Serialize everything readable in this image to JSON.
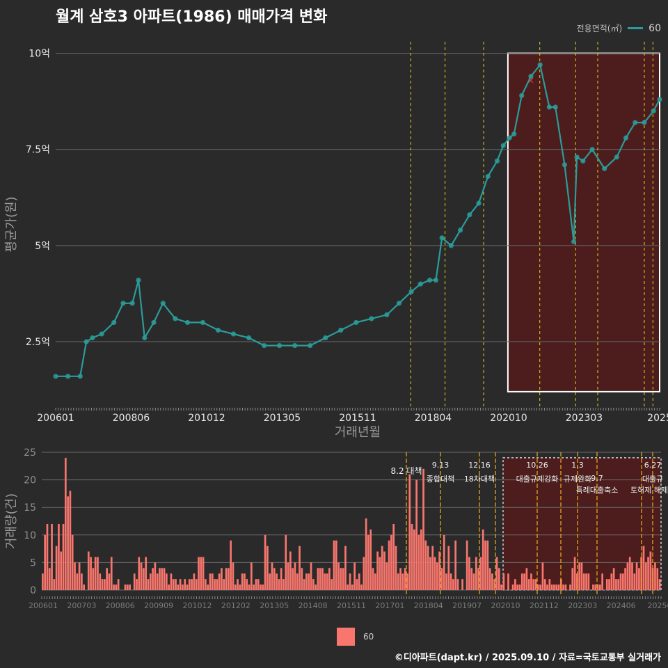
{
  "title": "월계 삼호3 아파트(1986) 매매가격 변화",
  "legend": {
    "title": "전용면적(㎡)",
    "entries": [
      "60"
    ]
  },
  "footer": "©디아파트(dapt.kr) / 2025.09.10 / 자료=국토교통부 실거래가",
  "colors": {
    "background": "#2a2a2b",
    "line": "#2a9d9a",
    "bar": "#f8766d",
    "vline": "#e6d21a",
    "vline2": "#e6a21a",
    "highlight": "#5a1a1a"
  },
  "chart_data": [
    {
      "type": "line",
      "title": "월계 삼호3 아파트(1986) 매매가격 변화",
      "xlabel": "거래년월",
      "ylabel": "평균가(원)",
      "x_tick_labels": [
        "200601",
        "200806",
        "201012",
        "201305",
        "201511",
        "201804",
        "202010",
        "202303",
        "2025"
      ],
      "y_tick_labels": [
        "2.5억",
        "5억",
        "7.5억",
        "10억"
      ],
      "y_tick_values": [
        2.5,
        5,
        7.5,
        10
      ],
      "ylim": [
        0.8,
        10.3
      ],
      "xlim": [
        2006.0,
        2025.7
      ],
      "series": [
        {
          "name": "60",
          "x": [
            2006.0,
            2006.4,
            2006.8,
            2007.0,
            2007.2,
            2007.5,
            2007.9,
            2008.2,
            2008.5,
            2008.7,
            2008.9,
            2009.2,
            2009.5,
            2009.9,
            2010.3,
            2010.8,
            2011.3,
            2011.8,
            2012.3,
            2012.8,
            2013.3,
            2013.8,
            2014.3,
            2014.8,
            2015.3,
            2015.8,
            2016.3,
            2016.8,
            2017.2,
            2017.6,
            2017.9,
            2018.2,
            2018.4,
            2018.6,
            2018.9,
            2019.2,
            2019.5,
            2019.8,
            2020.1,
            2020.4,
            2020.6,
            2020.8,
            2020.95,
            2021.2,
            2021.5,
            2021.8,
            2022.1,
            2022.3,
            2022.6,
            2022.9,
            2023.0,
            2023.2,
            2023.5,
            2023.9,
            2024.3,
            2024.6,
            2024.9,
            2025.2,
            2025.5,
            2025.7
          ],
          "y": [
            1.6,
            1.6,
            1.6,
            2.5,
            2.6,
            2.7,
            3.0,
            3.5,
            3.5,
            4.1,
            2.6,
            3.0,
            3.5,
            3.1,
            3.0,
            3.0,
            2.8,
            2.7,
            2.6,
            2.4,
            2.4,
            2.4,
            2.4,
            2.6,
            2.8,
            3.0,
            3.1,
            3.2,
            3.5,
            3.8,
            4.0,
            4.1,
            4.1,
            5.2,
            5.0,
            5.4,
            5.8,
            6.1,
            6.8,
            7.2,
            7.6,
            7.8,
            7.9,
            8.9,
            9.4,
            9.7,
            8.6,
            8.6,
            7.1,
            5.1,
            7.3,
            7.2,
            7.5,
            7.0,
            7.3,
            7.8,
            8.2,
            8.2,
            8.5,
            8.8
          ]
        }
      ],
      "annotation_marks": [
        {
          "label": "×",
          "x": 2021.5,
          "y": 9.3
        }
      ],
      "vlines": [
        2017.58,
        2018.7,
        2019.96,
        2021.79,
        2022.96,
        2023.68,
        2025.2,
        2025.48
      ],
      "highlight": {
        "x0": 2020.75,
        "x1": 2025.7,
        "y0": 1.2,
        "y1": 10.0
      }
    },
    {
      "type": "bar",
      "xlabel": "",
      "ylabel": "거래량(건)",
      "x_tick_labels": [
        "200601",
        "200703",
        "200806",
        "200909",
        "201012",
        "201202",
        "201305",
        "201408",
        "201511",
        "201701",
        "201804",
        "201907",
        "202010",
        "202112",
        "202303",
        "202406",
        "20250"
      ],
      "y_tick_labels": [
        "0",
        "5",
        "10",
        "15",
        "20",
        "25"
      ],
      "ylim": [
        0,
        25
      ],
      "series": [
        {
          "name": "60",
          "values": [
            3,
            10,
            12,
            4,
            12,
            2,
            8,
            12,
            7,
            12,
            24,
            17,
            18,
            10,
            5,
            3,
            5,
            3,
            1,
            0,
            7,
            6,
            4,
            6,
            6,
            3,
            2,
            2,
            4,
            3,
            6,
            1,
            1,
            2,
            0,
            0,
            1,
            1,
            1,
            0,
            3,
            2,
            6,
            5,
            4,
            6,
            2,
            3,
            4,
            5,
            3,
            4,
            4,
            4,
            3,
            1,
            3,
            2,
            2,
            1,
            2,
            1,
            2,
            1,
            2,
            2,
            3,
            2,
            6,
            6,
            6,
            2,
            1,
            3,
            3,
            2,
            2,
            3,
            4,
            2,
            4,
            4,
            9,
            5,
            1,
            2,
            1,
            3,
            3,
            2,
            1,
            5,
            1,
            2,
            2,
            1,
            1,
            10,
            8,
            3,
            5,
            4,
            3,
            2,
            4,
            2,
            10,
            5,
            7,
            4,
            5,
            3,
            8,
            4,
            2,
            3,
            3,
            5,
            2,
            1,
            4,
            4,
            4,
            3,
            3,
            4,
            2,
            9,
            9,
            5,
            4,
            4,
            8,
            1,
            3,
            1,
            5,
            2,
            3,
            1,
            6,
            13,
            10,
            11,
            4,
            3,
            7,
            6,
            8,
            7,
            5,
            9,
            10,
            12,
            8,
            3,
            4,
            3,
            4,
            3,
            21,
            12,
            11,
            20,
            10,
            11,
            22,
            9,
            8,
            6,
            8,
            6,
            5,
            7,
            4,
            10,
            3,
            8,
            3,
            2,
            9,
            2,
            0,
            2,
            0,
            9,
            6,
            4,
            3,
            6,
            4,
            6,
            11,
            9,
            9,
            4,
            3,
            2,
            6,
            4,
            1,
            3,
            0,
            3,
            0,
            1,
            2,
            1,
            1,
            3,
            3,
            4,
            2,
            3,
            2,
            2,
            1,
            1,
            5,
            2,
            1,
            2,
            1,
            1,
            1,
            1,
            2,
            1,
            1,
            0,
            1,
            4,
            6,
            3,
            5,
            5,
            3,
            3,
            3,
            0,
            1,
            1,
            1,
            1,
            3,
            0,
            2,
            2,
            3,
            4,
            2,
            2,
            3,
            3,
            4,
            5,
            6,
            5,
            3,
            5,
            4,
            6,
            8,
            5,
            6,
            7,
            4,
            5,
            4,
            2
          ]
        }
      ],
      "annotations": [
        {
          "date": "8.2",
          "label": "대책"
        },
        {
          "date": "9.13",
          "label": "종합대책"
        },
        {
          "date": "12.16",
          "label": "18차대책"
        },
        {
          "date": "10.26",
          "label": "대출규제강화"
        },
        {
          "date": "1.3",
          "label": "규제완화"
        },
        {
          "date": "9.7",
          "label": "특례대출축소"
        },
        {
          "date": "",
          "label": "토허제 해제"
        },
        {
          "date": "6.27",
          "label": "대출규"
        }
      ]
    }
  ]
}
